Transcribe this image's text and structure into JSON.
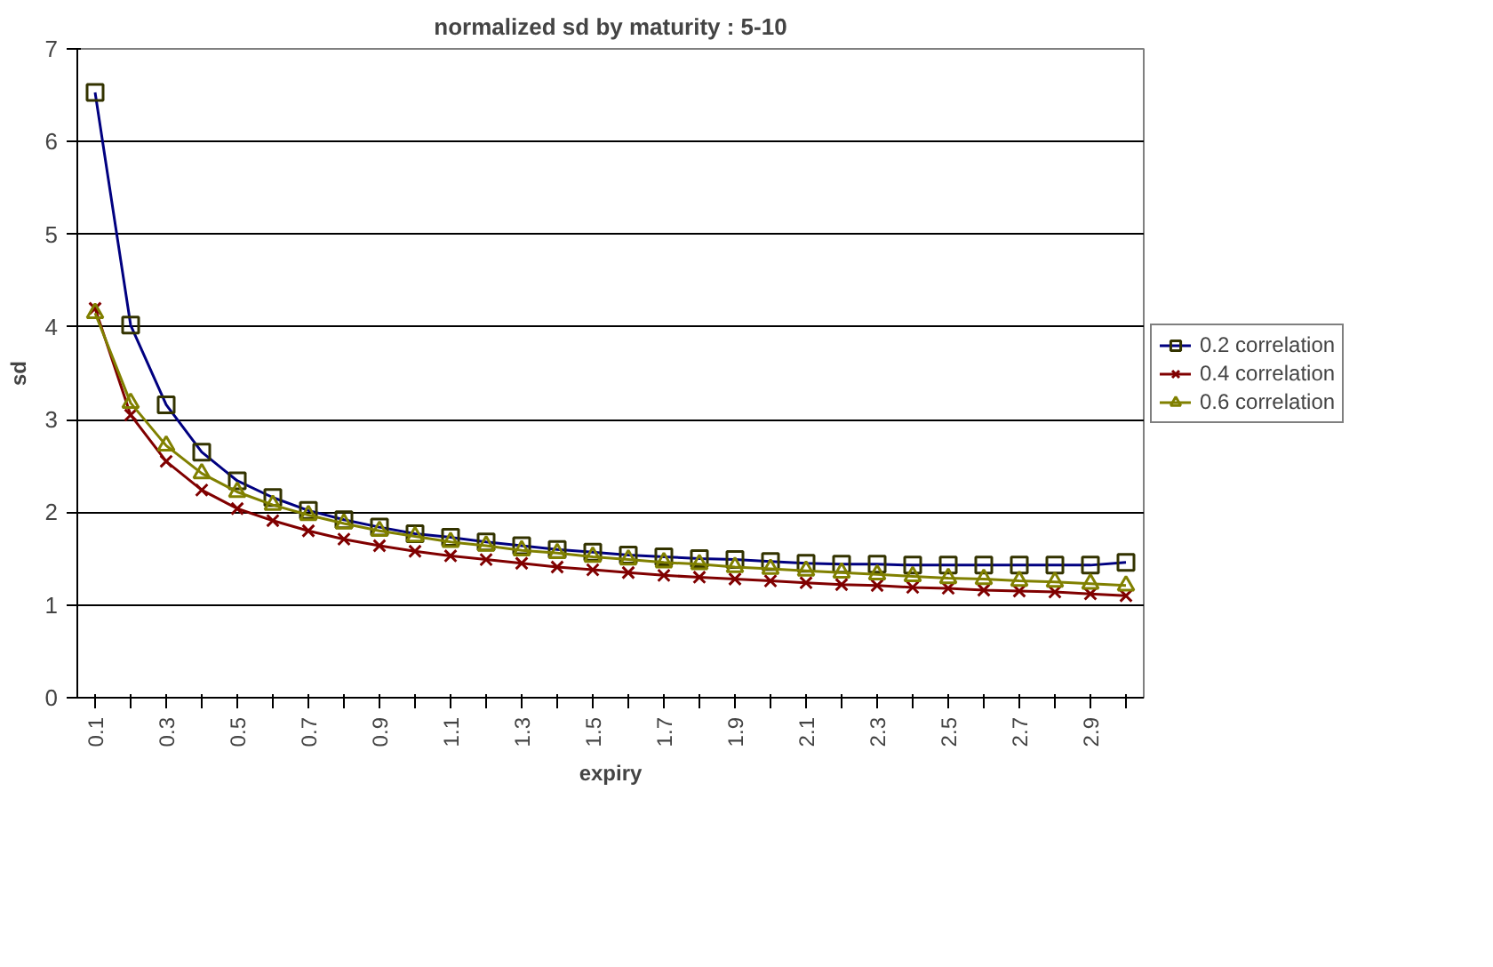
{
  "chart_data": {
    "type": "line",
    "title": "normalized sd by maturity : 5-10",
    "xlabel": "expiry",
    "ylabel": "sd",
    "categories": [
      "0.1",
      null,
      "0.3",
      null,
      "0.5",
      null,
      "0.7",
      null,
      "0.9",
      null,
      "1.1",
      null,
      "1.3",
      null,
      "1.5",
      null,
      "1.7",
      null,
      "1.9",
      null,
      "2.1",
      null,
      "2.3",
      null,
      "2.5",
      null,
      "2.7",
      null,
      "2.9",
      null
    ],
    "ylim": [
      0,
      7
    ],
    "yticks": [
      0,
      1,
      2,
      3,
      4,
      5,
      6,
      7
    ],
    "grid": "y",
    "legend": "right",
    "line_style": "solid",
    "series": [
      {
        "name": "0.2 correlation",
        "color": "#000080",
        "marker": "square",
        "values": [
          6.53,
          4.02,
          3.16,
          2.65,
          2.34,
          2.16,
          2.02,
          1.92,
          1.84,
          1.77,
          1.73,
          1.68,
          1.64,
          1.6,
          1.57,
          1.54,
          1.52,
          1.5,
          1.49,
          1.47,
          1.45,
          1.44,
          1.44,
          1.43,
          1.43,
          1.43,
          1.43,
          1.43,
          1.43,
          1.46
        ]
      },
      {
        "name": "0.4 correlation",
        "color": "#800000",
        "marker": "cross",
        "values": [
          4.2,
          3.05,
          2.55,
          2.24,
          2.04,
          1.91,
          1.8,
          1.71,
          1.64,
          1.58,
          1.53,
          1.49,
          1.45,
          1.41,
          1.38,
          1.35,
          1.32,
          1.3,
          1.28,
          1.26,
          1.24,
          1.22,
          1.21,
          1.19,
          1.18,
          1.16,
          1.15,
          1.14,
          1.12,
          1.1
        ]
      },
      {
        "name": "0.6 correlation",
        "color": "#808000",
        "marker": "triangle",
        "values": [
          4.15,
          3.18,
          2.72,
          2.42,
          2.22,
          2.08,
          1.97,
          1.88,
          1.8,
          1.74,
          1.68,
          1.64,
          1.59,
          1.56,
          1.52,
          1.49,
          1.46,
          1.44,
          1.41,
          1.39,
          1.37,
          1.35,
          1.33,
          1.31,
          1.29,
          1.28,
          1.26,
          1.25,
          1.23,
          1.21
        ]
      }
    ]
  }
}
